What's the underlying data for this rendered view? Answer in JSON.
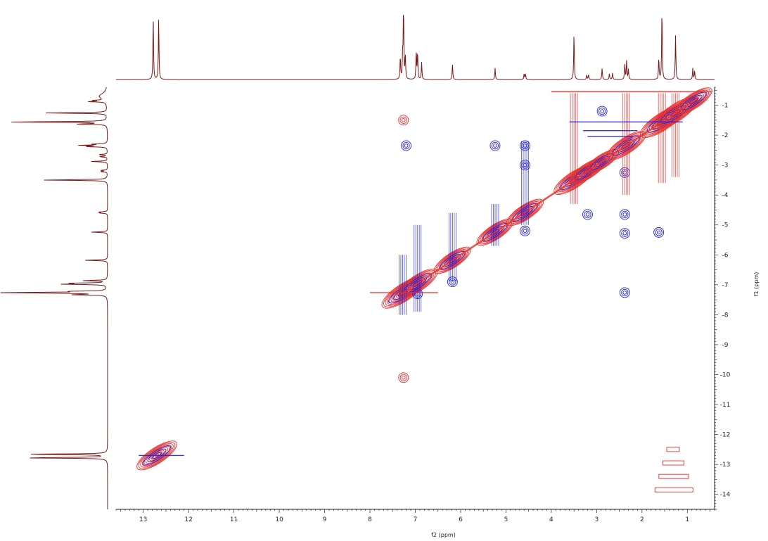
{
  "chart_data": {
    "type": "2d-nmr-contour",
    "title": "",
    "xlabel": "f2 (ppm)",
    "ylabel": "f1 (ppm)",
    "xlim": [
      13.6,
      0.4
    ],
    "ylim": [
      0.4,
      14.5
    ],
    "x_reversed": true,
    "y_reversed": false,
    "x_ticks": [
      13,
      12,
      11,
      10,
      9,
      8,
      7,
      6,
      5,
      4,
      3,
      2,
      1
    ],
    "y_ticks": [
      1,
      2,
      3,
      4,
      5,
      6,
      7,
      8,
      9,
      10,
      11,
      12,
      13,
      14
    ],
    "grid": false,
    "colors": {
      "positive": "#e8302c",
      "negative": "#2222dd",
      "projection": "#7a1a1a",
      "axis": "#222222"
    },
    "projection_peaks": [
      {
        "ppm": 12.78,
        "height": 0.86
      },
      {
        "ppm": 12.66,
        "height": 0.86
      },
      {
        "ppm": 7.33,
        "height": 0.32
      },
      {
        "ppm": 7.28,
        "height": 0.3
      },
      {
        "ppm": 7.26,
        "height": 1.0
      },
      {
        "ppm": 7.22,
        "height": 0.34
      },
      {
        "ppm": 6.98,
        "height": 0.4
      },
      {
        "ppm": 6.95,
        "height": 0.38
      },
      {
        "ppm": 6.86,
        "height": 0.24
      },
      {
        "ppm": 6.18,
        "height": 0.22
      },
      {
        "ppm": 5.24,
        "height": 0.16
      },
      {
        "ppm": 4.6,
        "height": 0.08
      },
      {
        "ppm": 4.57,
        "height": 0.08
      },
      {
        "ppm": 3.5,
        "height": 0.64
      },
      {
        "ppm": 3.22,
        "height": 0.06
      },
      {
        "ppm": 3.18,
        "height": 0.07
      },
      {
        "ppm": 2.88,
        "height": 0.16
      },
      {
        "ppm": 2.72,
        "height": 0.08
      },
      {
        "ppm": 2.65,
        "height": 0.09
      },
      {
        "ppm": 2.38,
        "height": 0.22
      },
      {
        "ppm": 2.34,
        "height": 0.26
      },
      {
        "ppm": 2.3,
        "height": 0.14
      },
      {
        "ppm": 1.63,
        "height": 0.3
      },
      {
        "ppm": 1.56,
        "height": 1.0
      },
      {
        "ppm": 1.26,
        "height": 0.62
      },
      {
        "ppm": 0.88,
        "height": 0.16
      },
      {
        "ppm": 0.84,
        "height": 0.12
      }
    ],
    "diagonal_peaks": [
      {
        "ppm": 12.7,
        "strength": 0.9
      },
      {
        "ppm": 7.26,
        "strength": 1.0
      },
      {
        "ppm": 6.95,
        "strength": 0.9
      },
      {
        "ppm": 6.18,
        "strength": 0.8
      },
      {
        "ppm": 5.24,
        "strength": 0.8
      },
      {
        "ppm": 4.58,
        "strength": 0.8
      },
      {
        "ppm": 3.5,
        "strength": 0.9
      },
      {
        "ppm": 3.2,
        "strength": 0.8
      },
      {
        "ppm": 2.88,
        "strength": 0.7
      },
      {
        "ppm": 2.35,
        "strength": 0.9
      },
      {
        "ppm": 1.56,
        "strength": 1.0
      },
      {
        "ppm": 1.26,
        "strength": 1.0
      },
      {
        "ppm": 0.86,
        "strength": 0.8
      }
    ],
    "cross_peaks": [
      {
        "x": 7.2,
        "y": 2.35,
        "sign": "negative"
      },
      {
        "x": 5.24,
        "y": 2.35,
        "sign": "negative"
      },
      {
        "x": 4.58,
        "y": 2.35,
        "sign": "negative"
      },
      {
        "x": 4.58,
        "y": 3.0,
        "sign": "negative"
      },
      {
        "x": 4.58,
        "y": 5.2,
        "sign": "negative"
      },
      {
        "x": 2.38,
        "y": 4.65,
        "sign": "negative"
      },
      {
        "x": 2.38,
        "y": 5.28,
        "sign": "negative"
      },
      {
        "x": 2.38,
        "y": 7.26,
        "sign": "negative"
      },
      {
        "x": 3.2,
        "y": 4.65,
        "sign": "negative"
      },
      {
        "x": 2.88,
        "y": 1.2,
        "sign": "negative"
      },
      {
        "x": 2.38,
        "y": 3.25,
        "sign": "negative"
      },
      {
        "x": 7.26,
        "y": 10.1,
        "sign": "positive"
      },
      {
        "x": 7.26,
        "y": 1.5,
        "sign": "positive"
      },
      {
        "x": 6.95,
        "y": 7.3,
        "sign": "negative"
      },
      {
        "x": 6.18,
        "y": 6.9,
        "sign": "negative"
      },
      {
        "x": 1.63,
        "y": 5.25,
        "sign": "negative"
      }
    ]
  }
}
